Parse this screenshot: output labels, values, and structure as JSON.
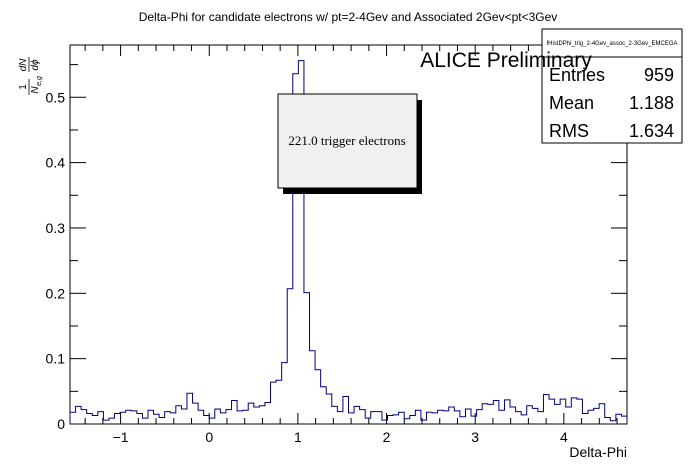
{
  "chart_data": {
    "type": "histogram",
    "title": "Delta-Phi for candidate electrons w/ pt=2-4Gev and Associated 2Gev<pt<3Gev",
    "xlabel": "Delta-Phi",
    "ylabel": {
      "num": "1",
      "den": "N",
      "den_sub": "e,g",
      "frac_num": "dN",
      "frac_den": "dϕ"
    },
    "xlim": [
      -1.5708,
      4.7124
    ],
    "ylim": [
      0,
      0.58
    ],
    "x_ticks": [
      "−1",
      "0",
      "1",
      "2",
      "3",
      "4"
    ],
    "x_tick_values": [
      -1,
      0,
      1,
      2,
      3,
      4
    ],
    "y_ticks": [
      "0",
      "0.1",
      "0.2",
      "0.3",
      "0.4",
      "0.5"
    ],
    "y_tick_values": [
      0,
      0.1,
      0.2,
      0.3,
      0.4,
      0.5
    ],
    "nbins": 100,
    "values": [
      0.018,
      0.027,
      0.022,
      0.016,
      0.013,
      0.019,
      0.006,
      0.009,
      0.016,
      0.018,
      0.021,
      0.02,
      0.016,
      0.009,
      0.021,
      0.015,
      0.01,
      0.019,
      0.017,
      0.028,
      0.023,
      0.047,
      0.032,
      0.021,
      0.013,
      0.009,
      0.023,
      0.017,
      0.022,
      0.036,
      0.02,
      0.021,
      0.032,
      0.026,
      0.028,
      0.033,
      0.064,
      0.067,
      0.094,
      0.207,
      0.536,
      0.556,
      0.201,
      0.112,
      0.083,
      0.057,
      0.046,
      0.027,
      0.019,
      0.042,
      0.017,
      0.027,
      0.022,
      0.009,
      0.019,
      0.019,
      0.006,
      0.013,
      0.014,
      0.018,
      0.008,
      0.013,
      0.021,
      0.006,
      0.018,
      0.017,
      0.021,
      0.02,
      0.026,
      0.02,
      0.011,
      0.023,
      0.012,
      0.022,
      0.031,
      0.03,
      0.036,
      0.021,
      0.037,
      0.026,
      0.019,
      0.014,
      0.028,
      0.024,
      0.019,
      0.045,
      0.038,
      0.03,
      0.038,
      0.026,
      0.04,
      0.038,
      0.016,
      0.021,
      0.024,
      0.031,
      0.01,
      0.005,
      0.015,
      0.012
    ],
    "line_color": "#000080",
    "grid": false,
    "stats": {
      "name": "fHistDPhi_trig_2-4Gev_assoc_2-3Gev_EMCEGA",
      "rows": [
        {
          "label": "Entries",
          "value": "959"
        },
        {
          "label": "Mean",
          "value": "1.188"
        },
        {
          "label": "RMS",
          "value": "1.634"
        }
      ]
    },
    "annotation": "ALICE Preliminary",
    "text_box": "221.0 trigger electrons"
  }
}
